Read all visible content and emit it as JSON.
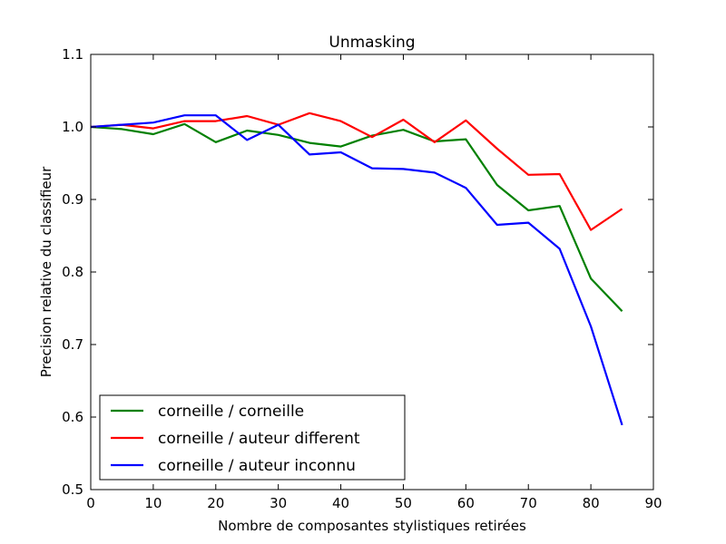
{
  "chart_data": {
    "type": "line",
    "title": "Unmasking",
    "xlabel": "Nombre de composantes stylistiques retirées",
    "ylabel": "Precision relative du classifieur",
    "xlim": [
      0,
      90
    ],
    "ylim": [
      0.5,
      1.1
    ],
    "xticks": [
      0,
      10,
      20,
      30,
      40,
      50,
      60,
      70,
      80,
      90
    ],
    "yticks": [
      0.5,
      0.6,
      0.7,
      0.8,
      0.9,
      1.0,
      1.1
    ],
    "xtick_labels": [
      "0",
      "10",
      "20",
      "30",
      "40",
      "50",
      "60",
      "70",
      "80",
      "90"
    ],
    "ytick_labels": [
      "0.5",
      "0.6",
      "0.7",
      "0.8",
      "0.9",
      "1.0",
      "1.1"
    ],
    "grid": false,
    "legend_position": "lower-left",
    "x": [
      0,
      5,
      10,
      15,
      20,
      25,
      30,
      35,
      40,
      45,
      50,
      55,
      60,
      65,
      70,
      75,
      80,
      85
    ],
    "series": [
      {
        "name": "corneille / corneille",
        "color": "#008000",
        "values": [
          1.0,
          0.997,
          0.99,
          1.004,
          0.979,
          0.995,
          0.989,
          0.978,
          0.973,
          0.988,
          0.996,
          0.98,
          0.983,
          0.92,
          0.885,
          0.891,
          0.791,
          0.746
        ]
      },
      {
        "name": "corneille / auteur different",
        "color": "#ff0000",
        "values": [
          1.0,
          1.003,
          0.998,
          1.008,
          1.008,
          1.015,
          1.003,
          1.019,
          1.008,
          0.986,
          1.01,
          0.979,
          1.009,
          0.97,
          0.934,
          0.935,
          0.858,
          0.887
        ]
      },
      {
        "name": "corneille / auteur inconnu",
        "color": "#0000ff",
        "values": [
          1.0,
          1.003,
          1.006,
          1.016,
          1.016,
          0.982,
          1.003,
          0.962,
          0.965,
          0.943,
          0.942,
          0.937,
          0.916,
          0.865,
          0.868,
          0.832,
          0.725,
          0.589
        ]
      }
    ]
  }
}
